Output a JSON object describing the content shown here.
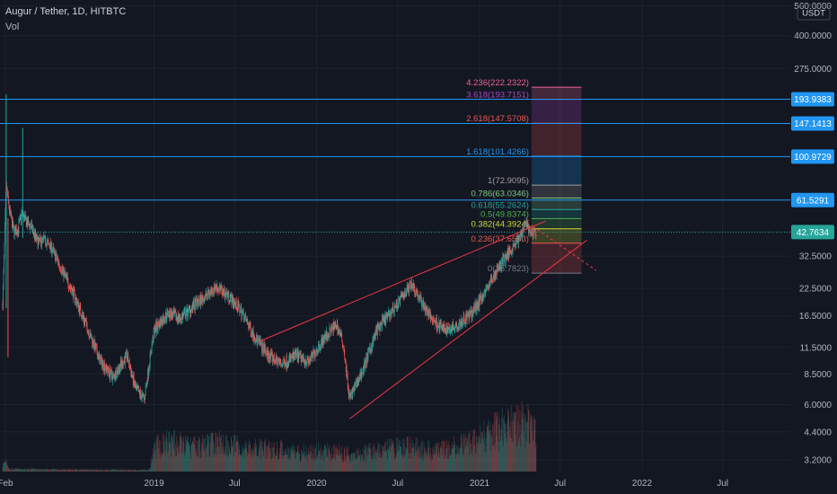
{
  "header": {
    "title": "Augur / Tether, 1D, HITBTC",
    "indicator": "Vol"
  },
  "axis": {
    "currency": "USDT"
  },
  "colors": {
    "background": "#131722",
    "up": "#26a69a",
    "down": "#ef5350",
    "hline": "#2196f3",
    "wedge": "#f23645",
    "text": "#b2b5be",
    "grid": "#1e222d"
  },
  "chart_data": {
    "type": "candlestick",
    "scale": "log",
    "ylim": [
      2.8,
      600
    ],
    "xlim": [
      "2018-01-20",
      "2022-11-30"
    ],
    "y_ticks": [
      "560.0000",
      "400.0000",
      "275.0000",
      "193.9383",
      "147.1413",
      "100.9729",
      "61.5291",
      "42.7634",
      "32.5000",
      "22.5000",
      "16.5000",
      "11.5000",
      "8.5000",
      "6.0000",
      "4.4000",
      "3.2000"
    ],
    "x_ticks": [
      "Feb",
      "2019",
      "Jul",
      "2020",
      "Jul",
      "2021",
      "Jul",
      "2022",
      "Jul"
    ],
    "horizontal_levels": [
      {
        "price": 193.9383,
        "label": "193.9383"
      },
      {
        "price": 147.1413,
        "label": "147.1413"
      },
      {
        "price": 100.9729,
        "label": "100.9729"
      },
      {
        "price": 61.5291,
        "label": "61.5291"
      }
    ],
    "last_price": {
      "price": 42.7634,
      "label": "42.7634"
    },
    "fib_extension": {
      "levels": [
        {
          "ratio": "4.236",
          "price": 222.2322,
          "label": "4.236(222.2322)",
          "color": "#f06292"
        },
        {
          "ratio": "3.618",
          "price": 193.7151,
          "label": "3.618(193.7151)",
          "color": "#ab47bc"
        },
        {
          "ratio": "2.618",
          "price": 147.5708,
          "label": "2.618(147.5708)",
          "color": "#ef5350"
        },
        {
          "ratio": "1.618",
          "price": 101.4266,
          "label": "1.618(101.4266)",
          "color": "#2196f3"
        },
        {
          "ratio": "1",
          "price": 72.9095,
          "label": "1(72.9095)",
          "color": "#9e9e9e"
        },
        {
          "ratio": "0.786",
          "price": 63.0346,
          "label": "0.786(63.0346)",
          "color": "#81c784"
        },
        {
          "ratio": "0.618",
          "price": 55.2624,
          "label": "0.618(55.2624)",
          "color": "#26a69a"
        },
        {
          "ratio": "0.5",
          "price": 49.8374,
          "label": "0.5(49.8374)",
          "color": "#4caf50"
        },
        {
          "ratio": "0.382",
          "price": 44.3924,
          "label": "0.382(44.3924)",
          "color": "#cddc39"
        },
        {
          "ratio": "0.236",
          "price": 37.6553,
          "label": "0.236(37.6553)",
          "color": "#ef5350"
        },
        {
          "ratio": "0",
          "price": 26.7823,
          "label": "0(26.7823)",
          "color": "#787b86"
        }
      ]
    },
    "rising_wedge": {
      "upper": [
        [
          "2019-08-25",
          12.3
        ],
        [
          "2021-05-30",
          48.5
        ]
      ],
      "lower": [
        [
          "2020-03-15",
          5.1
        ],
        [
          "2021-08-30",
          39.0
        ]
      ],
      "projection": [
        [
          "2021-05-01",
          45.6
        ],
        [
          "2021-09-20",
          27.6
        ]
      ]
    },
    "price_path": [
      [
        "2018-01-26",
        19
      ],
      [
        "2018-02-03",
        72
      ],
      [
        "2018-02-10",
        55
      ],
      [
        "2018-02-20",
        43
      ],
      [
        "2018-03-01",
        44
      ],
      [
        "2018-03-10",
        53
      ],
      [
        "2018-03-20",
        48
      ],
      [
        "2018-04-01",
        45
      ],
      [
        "2018-04-15",
        38
      ],
      [
        "2018-05-01",
        39
      ],
      [
        "2018-05-15",
        36
      ],
      [
        "2018-06-01",
        30
      ],
      [
        "2018-07-01",
        22
      ],
      [
        "2018-08-01",
        15
      ],
      [
        "2018-09-01",
        10
      ],
      [
        "2018-10-01",
        8.2
      ],
      [
        "2018-11-01",
        10.5
      ],
      [
        "2018-11-20",
        7.2
      ],
      [
        "2018-12-10",
        6.4
      ],
      [
        "2019-01-01",
        14
      ],
      [
        "2019-02-01",
        17
      ],
      [
        "2019-03-01",
        16
      ],
      [
        "2019-04-01",
        18.5
      ],
      [
        "2019-05-01",
        21
      ],
      [
        "2019-05-20",
        23
      ],
      [
        "2019-06-15",
        21
      ],
      [
        "2019-07-15",
        17.5
      ],
      [
        "2019-08-15",
        13
      ],
      [
        "2019-09-15",
        10.5
      ],
      [
        "2019-10-15",
        9.5
      ],
      [
        "2019-11-15",
        10.5
      ],
      [
        "2019-12-15",
        9.8
      ],
      [
        "2020-01-15",
        12.5
      ],
      [
        "2020-02-15",
        15
      ],
      [
        "2020-03-01",
        12
      ],
      [
        "2020-03-15",
        6.4
      ],
      [
        "2020-04-15",
        9
      ],
      [
        "2020-05-15",
        14
      ],
      [
        "2020-06-15",
        17
      ],
      [
        "2020-07-15",
        21
      ],
      [
        "2020-08-01",
        24
      ],
      [
        "2020-08-20",
        20
      ],
      [
        "2020-09-15",
        16
      ],
      [
        "2020-10-15",
        14
      ],
      [
        "2020-11-15",
        15
      ],
      [
        "2020-12-15",
        17
      ],
      [
        "2021-01-15",
        22
      ],
      [
        "2021-02-15",
        29
      ],
      [
        "2021-03-15",
        36
      ],
      [
        "2021-04-01",
        40
      ],
      [
        "2021-04-15",
        49
      ],
      [
        "2021-04-22",
        44
      ],
      [
        "2021-05-01",
        41
      ],
      [
        "2021-05-08",
        42.7634
      ]
    ],
    "volume_profile": [
      [
        "2018-01-20",
        0.03
      ],
      [
        "2018-02-03",
        0.25
      ],
      [
        "2018-02-10",
        0.05
      ],
      [
        "2018-12-20",
        0.03
      ],
      [
        "2019-01-05",
        0.5
      ],
      [
        "2019-02-01",
        0.6
      ],
      [
        "2019-04-01",
        0.5
      ],
      [
        "2019-06-01",
        0.6
      ],
      [
        "2019-08-01",
        0.45
      ],
      [
        "2019-10-01",
        0.45
      ],
      [
        "2019-12-01",
        0.4
      ],
      [
        "2020-02-01",
        0.4
      ],
      [
        "2020-04-01",
        0.35
      ],
      [
        "2020-06-01",
        0.45
      ],
      [
        "2020-08-01",
        0.5
      ],
      [
        "2020-10-01",
        0.4
      ],
      [
        "2020-12-01",
        0.55
      ],
      [
        "2021-02-01",
        0.8
      ],
      [
        "2021-04-01",
        1.0
      ],
      [
        "2021-05-08",
        0.9
      ]
    ]
  }
}
